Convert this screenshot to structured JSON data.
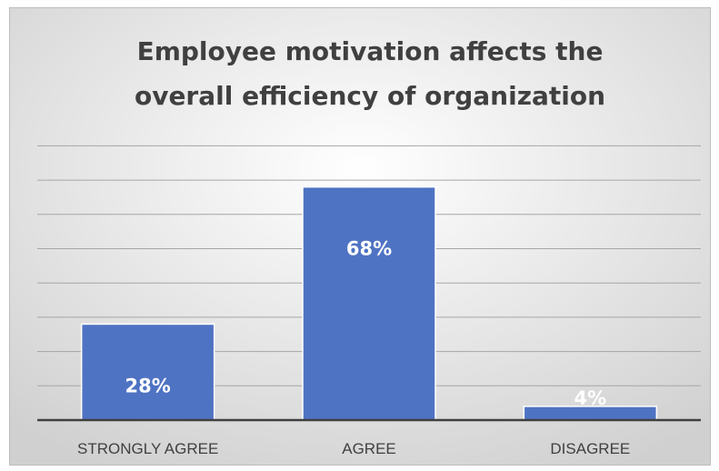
{
  "chart_data": {
    "type": "bar",
    "title": "Employee motivation affects the overall efficiency of organization",
    "title_lines": [
      "Employee motivation affects the",
      "overall efficiency of organization"
    ],
    "categories": [
      "STRONGLY AGREE",
      "AGREE",
      "DISAGREE"
    ],
    "values": [
      28,
      68,
      4
    ],
    "data_labels": [
      "28%",
      "68%",
      "4%"
    ],
    "xlabel": "",
    "ylabel": "",
    "ylim": [
      0,
      80
    ],
    "grid": true,
    "legend": "none",
    "colors": {
      "bar": "#4f73c3",
      "bar_edge": "#ffffff",
      "background_top": "#ffffff",
      "background_bottom": "#d9d9d9",
      "gridline": "#a6a6a6",
      "axis": "#404040"
    }
  }
}
